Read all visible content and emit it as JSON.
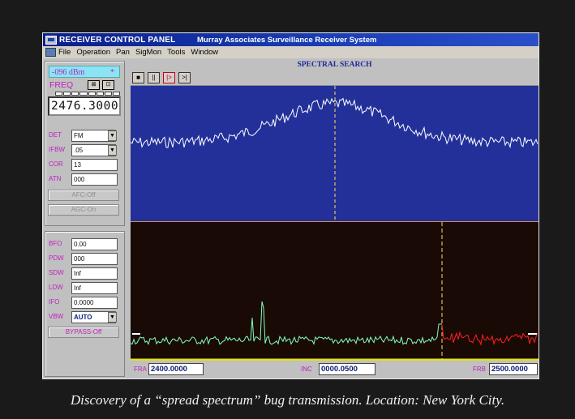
{
  "window": {
    "title_left": "RECEIVER CONTROL PANEL",
    "title_right": "Murray Associates Surveillance Receiver System"
  },
  "menu": [
    "File",
    "Operation",
    "Pan",
    "SigMon",
    "Tools",
    "Window"
  ],
  "panel": {
    "signal_level": "-096 dBm",
    "signal_star": "*",
    "freq_label": "FREQ",
    "freq_value": "2476.3000",
    "rows1": [
      {
        "label": "DET",
        "value": "FM"
      },
      {
        "label": "IFBW",
        "value": ".05"
      },
      {
        "label": "COR",
        "value": "13"
      },
      {
        "label": "ATN",
        "value": "000"
      }
    ],
    "afc_button": "AFC-Off",
    "agc_button": "AGC-On",
    "rows2": [
      {
        "label": "BFO",
        "value": "0.00"
      },
      {
        "label": "PDW",
        "value": "000"
      },
      {
        "label": "SDW",
        "value": "Inf"
      },
      {
        "label": "LDW",
        "value": "Inf"
      },
      {
        "label": "IFO",
        "value": "0.0000"
      },
      {
        "label": "VBW",
        "value": "AUTO"
      }
    ],
    "bypass_button": "BYPASS-Off"
  },
  "spectral": {
    "title": "SPECTRAL SEARCH",
    "controls": [
      "■",
      "||",
      "|>",
      ">|"
    ]
  },
  "bottom": {
    "fra_label": "FRA",
    "fra_value": "2400.0000",
    "inc_label": "INC",
    "inc_value": "0000.0500",
    "frb_label": "FRB",
    "frb_value": "2500.0000"
  },
  "colors": {
    "upper_bg": "#23309a",
    "lower_bg": "#1a0a06",
    "trace_upper": "#ffffff",
    "trace_lower": "#80ffc0",
    "trace_red": "#ff2020",
    "marker": "#ffe060",
    "baseline": "#e0e020"
  },
  "caption": "Discovery of a “spread spectrum” bug transmission. Location: New York City."
}
